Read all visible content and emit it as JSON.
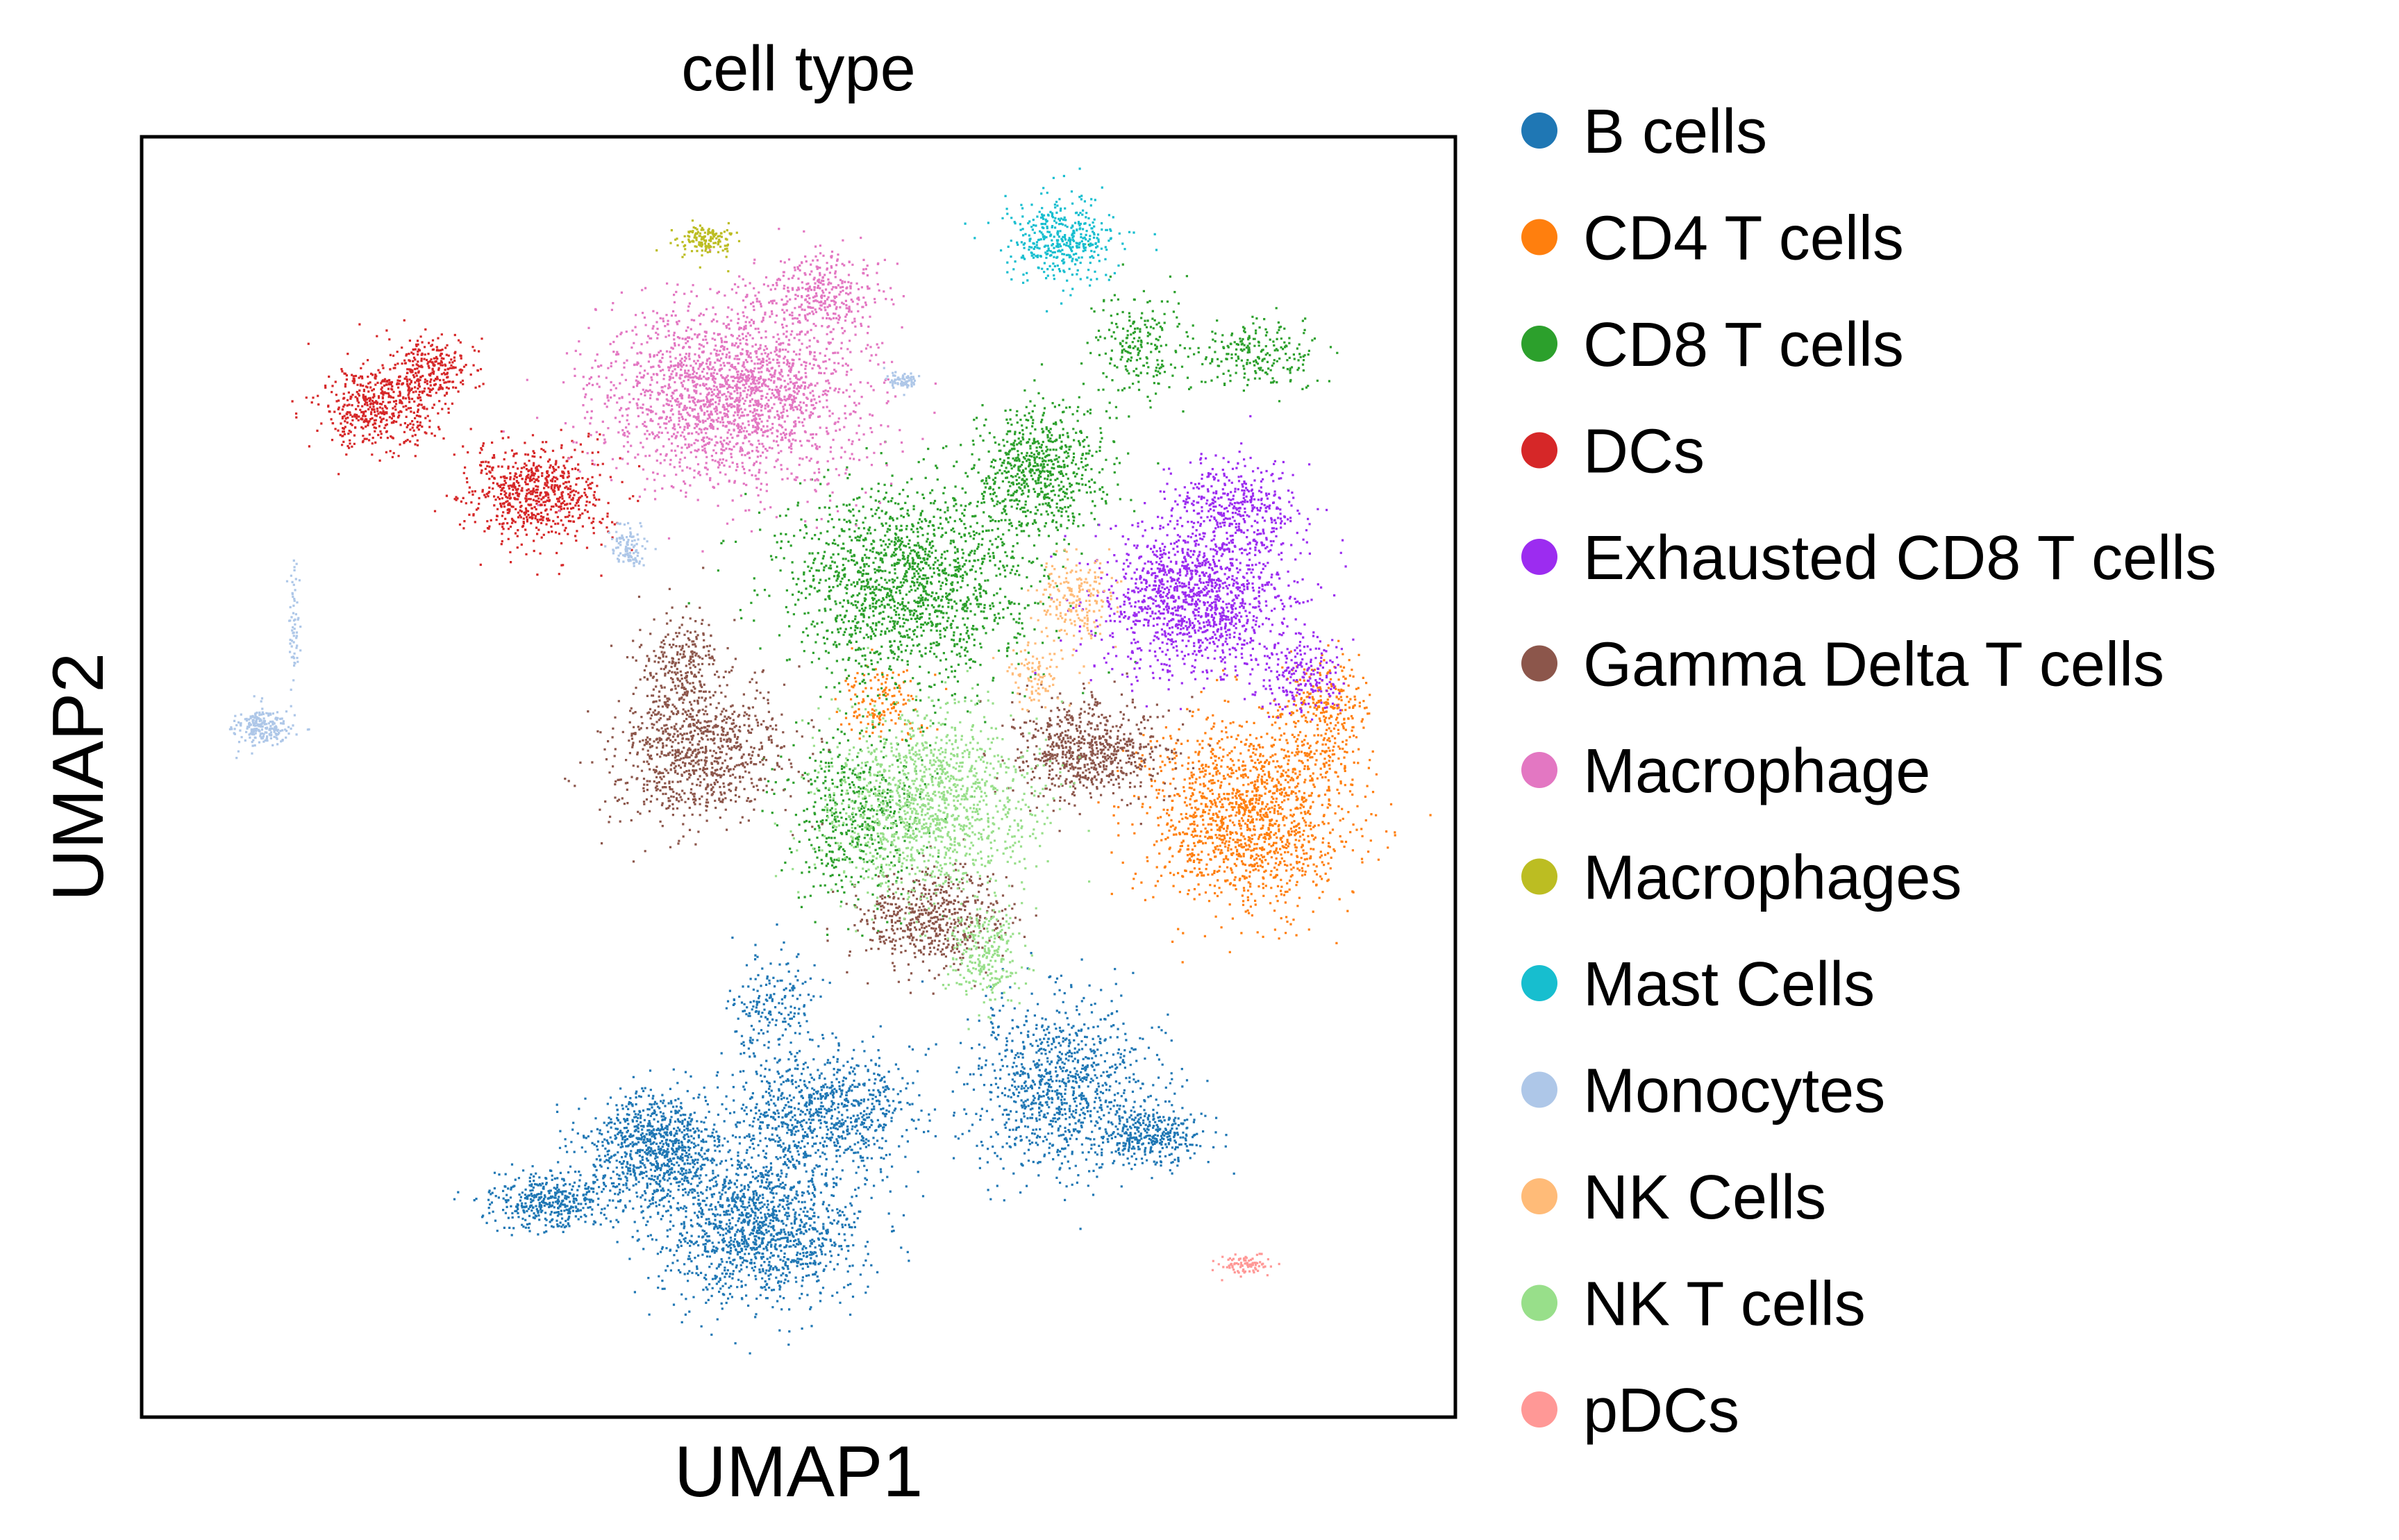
{
  "chart_data": {
    "type": "scatter",
    "title": "cell type",
    "xlabel": "UMAP1",
    "ylabel": "UMAP2",
    "grid": false,
    "ticks": "none",
    "legend": "right-outside",
    "note": "UMAP embedding scatter; coordinates are unitless, cluster centers/spreads given in normalized plot units (0-1).",
    "series": [
      {
        "name": "B cells",
        "color": "#1f77b4",
        "clusters": [
          [
            0.47,
            0.15,
            0.07,
            0.055,
            1400
          ],
          [
            0.39,
            0.21,
            0.05,
            0.04,
            900
          ],
          [
            0.31,
            0.17,
            0.04,
            0.02,
            420
          ],
          [
            0.52,
            0.24,
            0.06,
            0.04,
            800
          ],
          [
            0.7,
            0.26,
            0.065,
            0.06,
            1000
          ],
          [
            0.77,
            0.22,
            0.035,
            0.02,
            300
          ],
          [
            0.48,
            0.32,
            0.03,
            0.04,
            200
          ]
        ]
      },
      {
        "name": "CD4 T cells",
        "color": "#ff7f0e",
        "clusters": [
          [
            0.84,
            0.47,
            0.07,
            0.065,
            1500
          ],
          [
            0.9,
            0.55,
            0.03,
            0.04,
            300
          ],
          [
            0.56,
            0.56,
            0.03,
            0.025,
            150
          ]
        ]
      },
      {
        "name": "CD8 T cells",
        "color": "#2ca02c",
        "clusters": [
          [
            0.58,
            0.65,
            0.085,
            0.07,
            1600
          ],
          [
            0.68,
            0.74,
            0.045,
            0.05,
            700
          ],
          [
            0.54,
            0.47,
            0.05,
            0.06,
            500
          ],
          [
            0.85,
            0.83,
            0.04,
            0.025,
            220
          ],
          [
            0.76,
            0.84,
            0.035,
            0.04,
            220
          ]
        ]
      },
      {
        "name": "DCs",
        "color": "#d62728",
        "clusters": [
          [
            0.3,
            0.72,
            0.05,
            0.035,
            700
          ],
          [
            0.18,
            0.79,
            0.04,
            0.03,
            500
          ],
          [
            0.22,
            0.82,
            0.03,
            0.02,
            250
          ]
        ]
      },
      {
        "name": "Exhausted CD8 T cells",
        "color": "#9c2cf0",
        "clusters": [
          [
            0.8,
            0.64,
            0.065,
            0.05,
            1300
          ],
          [
            0.83,
            0.71,
            0.045,
            0.035,
            400
          ],
          [
            0.88,
            0.58,
            0.03,
            0.03,
            200
          ]
        ]
      },
      {
        "name": "Gamma Delta T cells",
        "color": "#8c564b",
        "clusters": [
          [
            0.42,
            0.52,
            0.06,
            0.05,
            900
          ],
          [
            0.72,
            0.52,
            0.05,
            0.035,
            700
          ],
          [
            0.6,
            0.39,
            0.05,
            0.035,
            550
          ],
          [
            0.41,
            0.59,
            0.03,
            0.035,
            250
          ]
        ]
      },
      {
        "name": "Macrophage",
        "color": "#e377c2",
        "clusters": [
          [
            0.45,
            0.8,
            0.09,
            0.065,
            2100
          ],
          [
            0.52,
            0.88,
            0.04,
            0.03,
            300
          ]
        ]
      },
      {
        "name": "Macrophages",
        "color": "#bcbd22",
        "clusters": [
          [
            0.43,
            0.92,
            0.02,
            0.012,
            150
          ]
        ]
      },
      {
        "name": "Mast Cells",
        "color": "#17becf",
        "clusters": [
          [
            0.7,
            0.92,
            0.035,
            0.03,
            400
          ]
        ]
      },
      {
        "name": "Monocytes",
        "color": "#aec7e8",
        "clusters": [
          [
            0.09,
            0.54,
            0.02,
            0.012,
            220
          ],
          [
            0.37,
            0.68,
            0.012,
            0.015,
            110
          ],
          [
            0.58,
            0.81,
            0.012,
            0.006,
            70
          ],
          [
            0.115,
            0.62,
            0.004,
            0.05,
            60
          ]
        ]
      },
      {
        "name": "NK Cells",
        "color": "#ffbb78",
        "clusters": [
          [
            0.71,
            0.64,
            0.025,
            0.03,
            200
          ],
          [
            0.68,
            0.58,
            0.02,
            0.02,
            90
          ]
        ]
      },
      {
        "name": "NK T cells",
        "color": "#98df8a",
        "clusters": [
          [
            0.6,
            0.48,
            0.07,
            0.065,
            1300
          ],
          [
            0.64,
            0.36,
            0.025,
            0.035,
            250
          ]
        ]
      },
      {
        "name": "pDCs",
        "color": "#ff9896",
        "clusters": [
          [
            0.84,
            0.12,
            0.018,
            0.007,
            90
          ]
        ]
      }
    ]
  }
}
